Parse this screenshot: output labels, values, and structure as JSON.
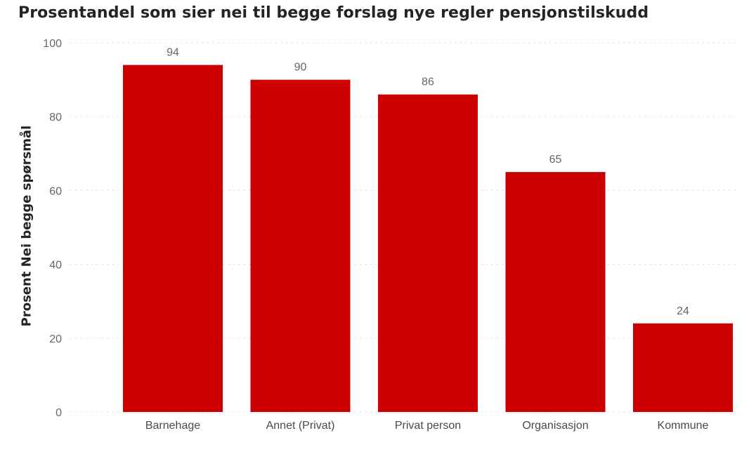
{
  "chart_data": {
    "type": "bar",
    "title": "Prosentandel som sier nei til begge forslag nye regler pensjonstilskudd",
    "xlabel": "",
    "ylabel": "Prosent Nei begge spørsmål",
    "categories": [
      "Barnehage",
      "Annet (Privat)",
      "Privat person",
      "Organisasjon",
      "Kommune"
    ],
    "values": [
      94,
      90,
      86,
      65,
      24
    ],
    "data_labels": [
      "94",
      "90",
      "86",
      "65",
      "24"
    ],
    "yticks": [
      0,
      20,
      40,
      60,
      80,
      100
    ],
    "ylim": [
      0,
      100
    ],
    "bar_color": "#cc0000",
    "grid": true,
    "legend": "none"
  }
}
